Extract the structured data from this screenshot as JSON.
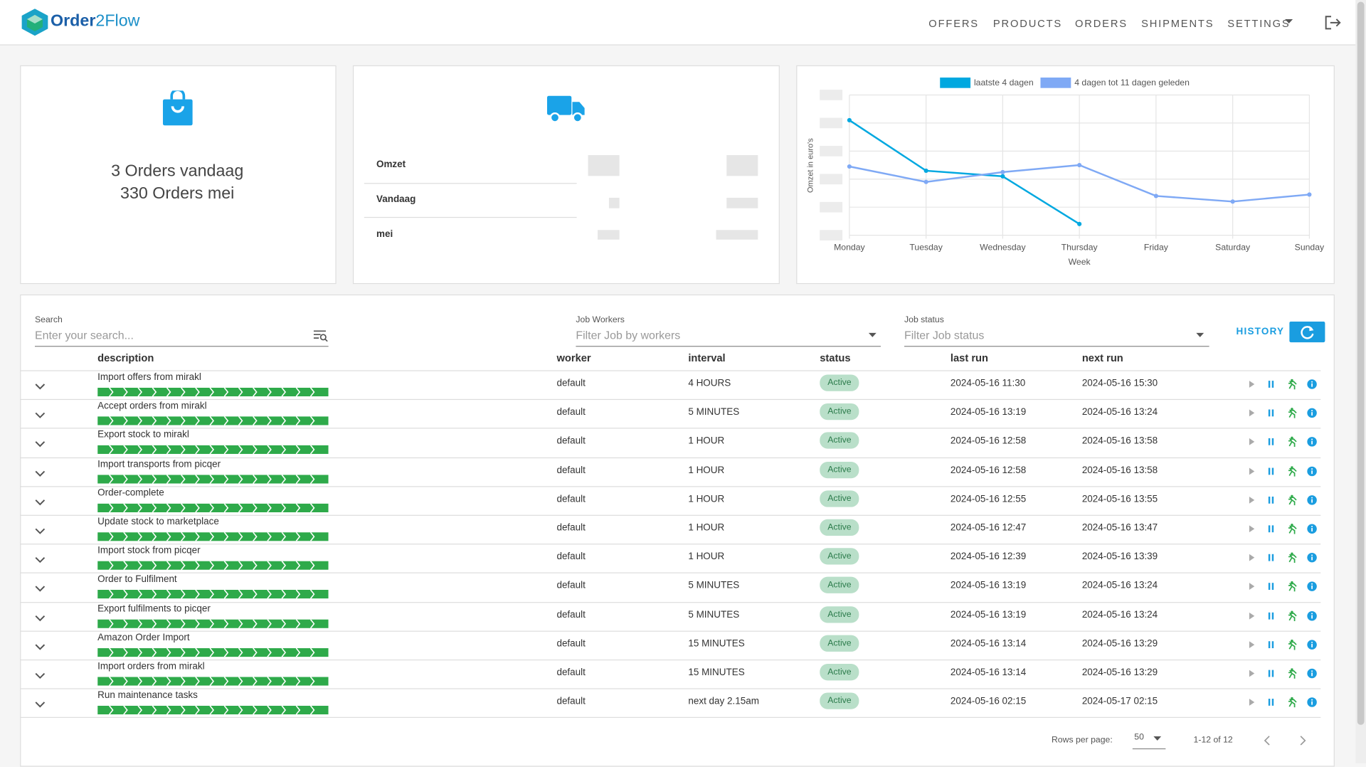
{
  "header": {
    "logo_brand": "Order",
    "logo_rest": "2Flow",
    "nav": [
      "OFFERS",
      "PRODUCTS",
      "ORDERS",
      "SHIPMENTS",
      "SETTINGS"
    ]
  },
  "orders_card": {
    "line1": "3 Orders vandaag",
    "line2": "330 Orders mei"
  },
  "revenue_card": {
    "rows": [
      "Omzet",
      "Vandaag",
      "mei"
    ]
  },
  "chart_data": {
    "type": "line",
    "x_label": "Week",
    "y_label": "Omzet in euro's",
    "categories": [
      "Monday",
      "Tuesday",
      "Wednesday",
      "Thursday",
      "Friday",
      "Saturday",
      "Sunday"
    ],
    "ylim": [
      0,
      5
    ],
    "series": [
      {
        "name": "laatste 4 dagen",
        "color": "#00a8e0",
        "values": [
          4.1,
          2.3,
          2.1,
          0.4,
          null,
          null,
          null
        ]
      },
      {
        "name": "4 dagen tot 11 dagen geleden",
        "color": "#7fa9f5",
        "values": [
          2.45,
          1.9,
          2.25,
          2.5,
          1.4,
          1.2,
          1.45
        ]
      }
    ]
  },
  "filters": {
    "search_label": "Search",
    "search_placeholder": "Enter your search...",
    "workers_label": "Job Workers",
    "workers_placeholder": "Filter Job by workers",
    "status_label": "Job status",
    "status_placeholder": "Filter Job status",
    "history": "HISTORY"
  },
  "table": {
    "columns": [
      "description",
      "worker",
      "interval",
      "status",
      "last run",
      "next run"
    ],
    "rows": [
      [
        "Import offers from mirakl",
        "default",
        "4 HOURS",
        "Active",
        "2024-05-16 11:30",
        "2024-05-16 15:30"
      ],
      [
        "Accept orders from mirakl",
        "default",
        "5 MINUTES",
        "Active",
        "2024-05-16 13:19",
        "2024-05-16 13:24"
      ],
      [
        "Export stock to mirakl",
        "default",
        "1 HOUR",
        "Active",
        "2024-05-16 12:58",
        "2024-05-16 13:58"
      ],
      [
        "Import transports from picqer",
        "default",
        "1 HOUR",
        "Active",
        "2024-05-16 12:58",
        "2024-05-16 13:58"
      ],
      [
        "Order-complete",
        "default",
        "1 HOUR",
        "Active",
        "2024-05-16 12:55",
        "2024-05-16 13:55"
      ],
      [
        "Update stock to marketplace",
        "default",
        "1 HOUR",
        "Active",
        "2024-05-16 12:47",
        "2024-05-16 13:47"
      ],
      [
        "Import stock from picqer",
        "default",
        "1 HOUR",
        "Active",
        "2024-05-16 12:39",
        "2024-05-16 13:39"
      ],
      [
        "Order to Fulfilment",
        "default",
        "5 MINUTES",
        "Active",
        "2024-05-16 13:19",
        "2024-05-16 13:24"
      ],
      [
        "Export fulfilments to picqer",
        "default",
        "5 MINUTES",
        "Active",
        "2024-05-16 13:19",
        "2024-05-16 13:24"
      ],
      [
        "Amazon Order Import",
        "default",
        "15 MINUTES",
        "Active",
        "2024-05-16 13:14",
        "2024-05-16 13:29"
      ],
      [
        "Import orders from mirakl",
        "default",
        "15 MINUTES",
        "Active",
        "2024-05-16 13:14",
        "2024-05-16 13:29"
      ],
      [
        "Run maintenance tasks",
        "default",
        "next day 2.15am",
        "Active",
        "2024-05-16 02:15",
        "2024-05-17 02:15"
      ]
    ]
  },
  "pagination": {
    "rows_per_page_label": "Rows per page:",
    "rows_per_page": 50,
    "range": "1-12 of 12"
  }
}
